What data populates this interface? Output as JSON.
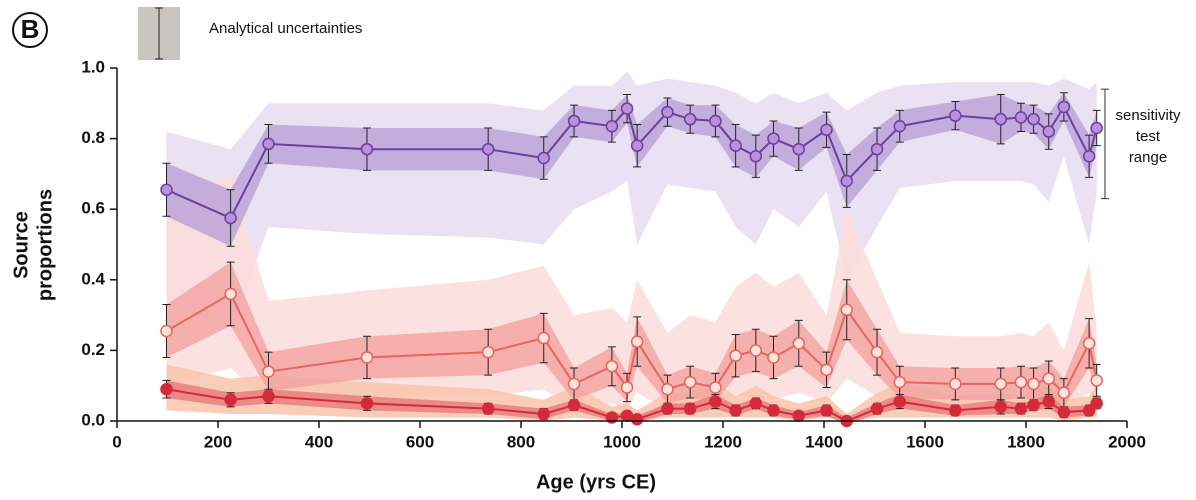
{
  "chart_data": {
    "type": "line-errorband",
    "panel_label": "B",
    "legend_label": "Analytical uncertainties",
    "annotation_lines": [
      "sensitivity",
      "test",
      "range"
    ],
    "sensitivity_bracket": [
      0.63,
      0.94
    ],
    "ylabel_lines": [
      "Source",
      "proportions"
    ],
    "xlabel": "Age (yrs CE)",
    "xlim": [
      0,
      2000
    ],
    "xticks": [
      0,
      200,
      400,
      600,
      800,
      1000,
      1200,
      1400,
      1600,
      1800,
      2000
    ],
    "ylim": [
      0,
      1
    ],
    "yticks": [
      {
        "value": 0,
        "label": "0.0"
      },
      0.2,
      0.4,
      0.6,
      0.8,
      {
        "value": 1,
        "label": "1.0"
      }
    ],
    "x": [
      98,
      225,
      300,
      495,
      735,
      845,
      905,
      980,
      1010,
      1030,
      1090,
      1135,
      1185,
      1225,
      1265,
      1300,
      1350,
      1405,
      1445,
      1505,
      1550,
      1660,
      1750,
      1790,
      1815,
      1845,
      1875,
      1925,
      1940
    ],
    "series": [
      {
        "color": "#6a3f9e",
        "marker_fill": "#b892dc",
        "band_color": "#b9a0d6",
        "sensitivity_color": "#e6dcf0",
        "values": [
          0.655,
          0.575,
          0.785,
          0.77,
          0.77,
          0.745,
          0.85,
          0.835,
          0.885,
          0.78,
          0.875,
          0.855,
          0.85,
          0.78,
          0.75,
          0.8,
          0.77,
          0.825,
          0.68,
          0.77,
          0.835,
          0.865,
          0.855,
          0.86,
          0.855,
          0.82,
          0.89,
          0.75,
          0.83
        ],
        "errors": [
          0.075,
          0.08,
          0.055,
          0.06,
          0.06,
          0.06,
          0.045,
          0.045,
          0.04,
          0.06,
          0.04,
          0.04,
          0.045,
          0.06,
          0.06,
          0.05,
          0.06,
          0.05,
          0.075,
          0.06,
          0.045,
          0.04,
          0.07,
          0.04,
          0.04,
          0.05,
          0.04,
          0.06,
          0.05
        ],
        "sensitivity_low": [
          0.35,
          0.25,
          0.55,
          0.53,
          0.52,
          0.5,
          0.6,
          0.65,
          0.68,
          0.5,
          0.67,
          0.66,
          0.65,
          0.55,
          0.5,
          0.6,
          0.55,
          0.65,
          0.4,
          0.55,
          0.66,
          0.68,
          0.68,
          0.68,
          0.67,
          0.62,
          0.75,
          0.5,
          0.65
        ],
        "sensitivity_high": [
          0.82,
          0.77,
          0.9,
          0.9,
          0.9,
          0.88,
          0.95,
          0.95,
          0.99,
          0.95,
          0.97,
          0.96,
          0.95,
          0.93,
          0.9,
          0.93,
          0.9,
          0.93,
          0.88,
          0.93,
          0.95,
          0.96,
          0.96,
          0.96,
          0.96,
          0.95,
          0.97,
          0.94,
          0.96
        ]
      },
      {
        "color": "#e8655a",
        "marker_fill": "#fde3de",
        "band_color": "#f3a3a0",
        "sensitivity_color": "#fbdcdc",
        "values": [
          0.255,
          0.36,
          0.14,
          0.18,
          0.195,
          0.235,
          0.105,
          0.155,
          0.095,
          0.225,
          0.09,
          0.11,
          0.095,
          0.185,
          0.2,
          0.18,
          0.22,
          0.145,
          0.315,
          0.195,
          0.11,
          0.105,
          0.105,
          0.11,
          0.105,
          0.12,
          0.08,
          0.22,
          0.115
        ],
        "errors": [
          0.075,
          0.09,
          0.055,
          0.06,
          0.065,
          0.07,
          0.045,
          0.055,
          0.04,
          0.07,
          0.04,
          0.045,
          0.04,
          0.06,
          0.06,
          0.06,
          0.065,
          0.05,
          0.085,
          0.065,
          0.045,
          0.045,
          0.045,
          0.045,
          0.045,
          0.05,
          0.04,
          0.07,
          0.045
        ],
        "sensitivity_low": [
          0.1,
          0.15,
          0.05,
          0.07,
          0.07,
          0.09,
          0.03,
          0.05,
          0.03,
          0.08,
          0.03,
          0.03,
          0.03,
          0.07,
          0.07,
          0.06,
          0.08,
          0.05,
          0.12,
          0.07,
          0.03,
          0.03,
          0.03,
          0.03,
          0.03,
          0.04,
          0.02,
          0.08,
          0.03
        ],
        "sensitivity_high": [
          0.6,
          0.7,
          0.34,
          0.37,
          0.4,
          0.44,
          0.3,
          0.32,
          0.28,
          0.4,
          0.25,
          0.3,
          0.28,
          0.38,
          0.42,
          0.38,
          0.42,
          0.3,
          0.6,
          0.4,
          0.25,
          0.24,
          0.24,
          0.25,
          0.24,
          0.28,
          0.2,
          0.45,
          0.26
        ]
      },
      {
        "color": "#d42a3a",
        "marker_fill": "#d42a3a",
        "band_color": "#e77a7c",
        "sensitivity_color": "#f8c4ab",
        "values": [
          0.09,
          0.06,
          0.07,
          0.05,
          0.035,
          0.02,
          0.045,
          0.01,
          0.015,
          0.005,
          0.035,
          0.035,
          0.055,
          0.03,
          0.05,
          0.03,
          0.015,
          0.03,
          0.0,
          0.035,
          0.055,
          0.03,
          0.04,
          0.035,
          0.045,
          0.055,
          0.025,
          0.03,
          0.05
        ],
        "errors": [
          0.025,
          0.02,
          0.02,
          0.02,
          0.015,
          0.015,
          0.015,
          0.01,
          0.01,
          0.01,
          0.015,
          0.015,
          0.02,
          0.015,
          0.015,
          0.015,
          0.01,
          0.015,
          0.01,
          0.015,
          0.02,
          0.015,
          0.02,
          0.015,
          0.015,
          0.02,
          0.015,
          0.015,
          0.015
        ],
        "sensitivity_low": [
          0.03,
          0.02,
          0.02,
          0.01,
          0.01,
          0,
          0.01,
          0,
          0,
          0,
          0.01,
          0.01,
          0.01,
          0.01,
          0.01,
          0.01,
          0,
          0.01,
          0,
          0.01,
          0.01,
          0.01,
          0.01,
          0.01,
          0.01,
          0.01,
          0,
          0.01,
          0.01
        ],
        "sensitivity_high": [
          0.16,
          0.12,
          0.13,
          0.11,
          0.09,
          0.06,
          0.1,
          0.04,
          0.05,
          0.03,
          0.08,
          0.08,
          0.11,
          0.07,
          0.1,
          0.07,
          0.05,
          0.07,
          0.02,
          0.08,
          0.11,
          0.07,
          0.08,
          0.07,
          0.09,
          0.1,
          0.06,
          0.07,
          0.1
        ]
      }
    ]
  }
}
